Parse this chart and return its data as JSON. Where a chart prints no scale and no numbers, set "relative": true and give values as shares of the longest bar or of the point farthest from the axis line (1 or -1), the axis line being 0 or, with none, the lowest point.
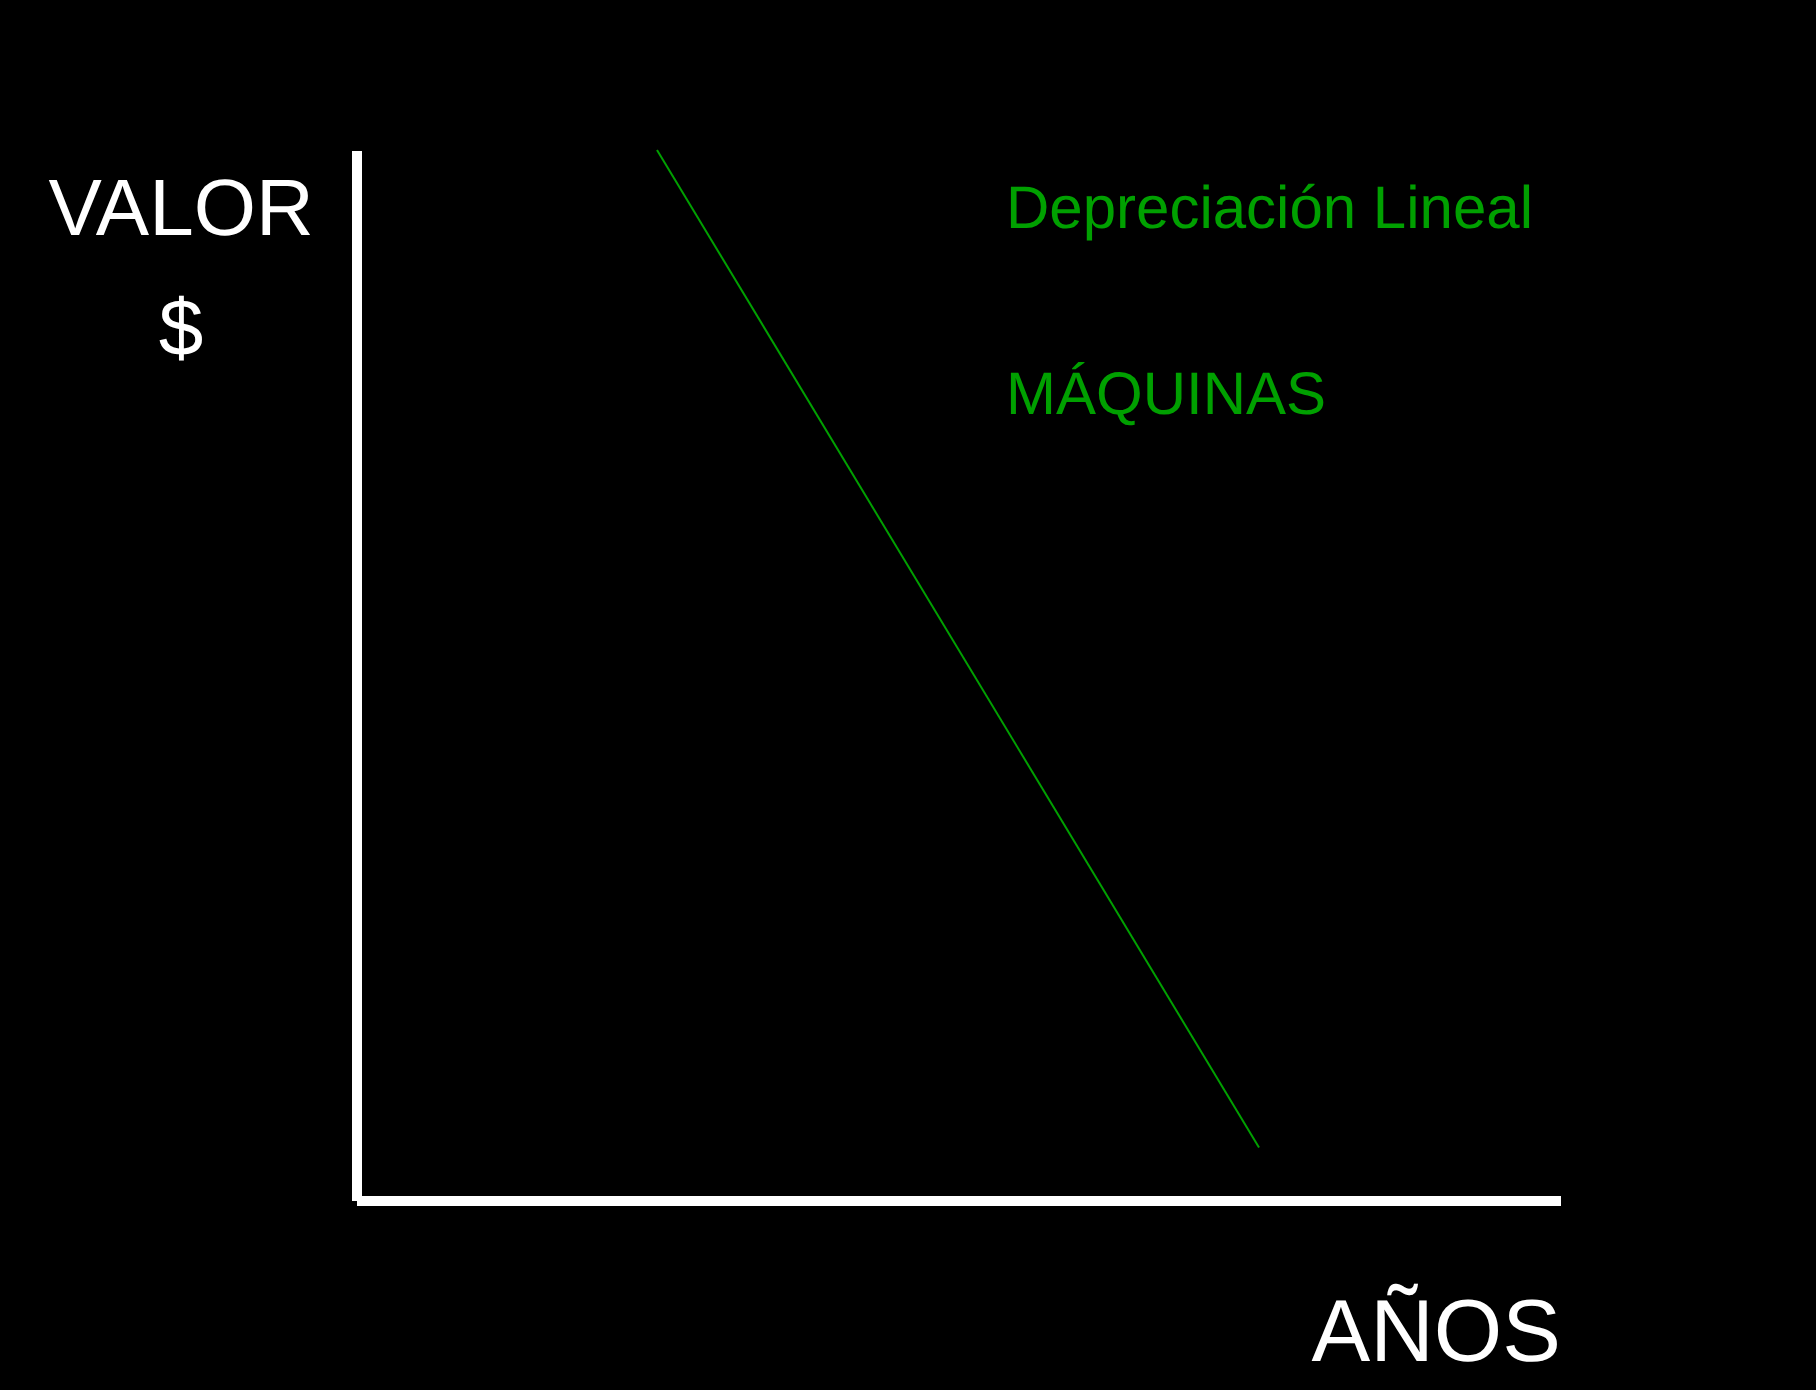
{
  "chart_data": {
    "type": "line",
    "relative": true,
    "xlabel": "AÑOS",
    "ylabel": "VALOR\n$",
    "annotations": [
      "Depreciación Lineal",
      "MÁQUINAS"
    ],
    "categories": [
      null,
      null
    ],
    "series": [
      {
        "color": "#00a000",
        "values": [
          1,
          0.05
        ]
      }
    ],
    "grid": false,
    "marker": "none",
    "line_style": "solid"
  }
}
